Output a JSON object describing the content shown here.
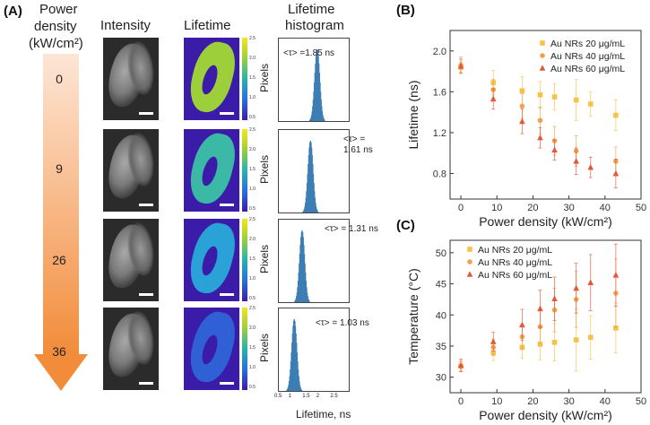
{
  "panel_a": {
    "letter": "(A)",
    "pd_header": [
      "Power",
      "density",
      "(kW/cm²)"
    ],
    "col_intensity": "Intensity",
    "col_lifetime": "Lifetime",
    "col_hist": [
      "Lifetime",
      "histogram"
    ],
    "power_levels": [
      "0",
      "9",
      "26",
      "36"
    ],
    "colorbar_ticks": [
      "2.5",
      "2.0",
      "1.5",
      "1.0",
      "0.5"
    ],
    "hist_ylabel": "Pixels",
    "hist_xlabel": "Lifetime, ns",
    "hist_xticks": [
      "0.5",
      "1",
      "1.5",
      "2",
      "2.5"
    ],
    "hist_annotations": [
      [
        "<τ> =1.85 ns"
      ],
      [
        "<τ> =",
        "1.61 ns"
      ],
      [
        "<τ> = 1.31 ns"
      ],
      [
        "<τ> = 1.03 ns"
      ]
    ]
  },
  "chart_data": [
    {
      "type": "scatter",
      "panel": "(B)",
      "title": "",
      "xlabel": "Power density (kW/cm²)",
      "ylabel": "Lifetime (ns)",
      "xlim": [
        -3,
        50
      ],
      "ylim": [
        0.55,
        2.2
      ],
      "xticks": [
        0,
        10,
        20,
        30,
        40,
        50
      ],
      "yticks": [
        0.8,
        1.2,
        1.6,
        2.0
      ],
      "xtick_labels": [
        "0",
        "10",
        "20",
        "30",
        "40",
        "50"
      ],
      "ytick_labels": [
        "0.8",
        "1.2",
        "1.6",
        "2.0"
      ],
      "legend_position": "top-right",
      "series": [
        {
          "name": "Au NRs 20 μg/mL",
          "marker": "square",
          "color": "#f6c24a",
          "x": [
            0,
            9,
            17,
            22,
            26,
            32,
            36,
            43
          ],
          "y": [
            1.84,
            1.69,
            1.61,
            1.57,
            1.55,
            1.52,
            1.48,
            1.37
          ],
          "err": [
            0.05,
            0.12,
            0.14,
            0.13,
            0.13,
            0.2,
            0.12,
            0.15
          ]
        },
        {
          "name": "Au NRs 40 μg/mL",
          "marker": "circle",
          "color": "#f2a14d",
          "x": [
            0,
            9,
            17,
            22,
            26,
            32,
            43
          ],
          "y": [
            1.86,
            1.62,
            1.46,
            1.32,
            1.12,
            1.02,
            0.92
          ],
          "err": [
            0.08,
            0.1,
            0.12,
            0.13,
            0.14,
            0.15,
            0.14
          ]
        },
        {
          "name": "Au NRs 60 μg/mL",
          "marker": "triangle",
          "color": "#e2583a",
          "x": [
            0,
            9,
            17,
            22,
            26,
            32,
            36,
            43
          ],
          "y": [
            1.85,
            1.53,
            1.31,
            1.15,
            1.03,
            0.92,
            0.86,
            0.8
          ],
          "err": [
            0.07,
            0.1,
            0.12,
            0.1,
            0.1,
            0.13,
            0.1,
            0.14
          ]
        }
      ]
    },
    {
      "type": "scatter",
      "panel": "(C)",
      "title": "",
      "xlabel": "Power density (kW/cm²)",
      "ylabel": "Temperature (°C)",
      "xlim": [
        -3,
        50
      ],
      "ylim": [
        27.5,
        52
      ],
      "xticks": [
        0,
        10,
        20,
        30,
        40,
        50
      ],
      "yticks": [
        30,
        35,
        40,
        45,
        50
      ],
      "xtick_labels": [
        "0",
        "10",
        "20",
        "30",
        "40",
        "50"
      ],
      "ytick_labels": [
        "30",
        "35",
        "40",
        "45",
        "50"
      ],
      "legend_position": "top-left",
      "series": [
        {
          "name": "Au NRs 20 μg/mL",
          "marker": "square",
          "color": "#f6c24a",
          "x": [
            0,
            9,
            17,
            22,
            26,
            32,
            36,
            43
          ],
          "y": [
            31.8,
            33.9,
            34.8,
            35.3,
            35.6,
            36.0,
            36.4,
            37.9
          ],
          "err": [
            0.8,
            1.2,
            1.8,
            2.5,
            3.0,
            5.0,
            3.5,
            4.0
          ]
        },
        {
          "name": "Au NRs 40 μg/mL",
          "marker": "circle",
          "color": "#f2a14d",
          "x": [
            0,
            9,
            17,
            22,
            26,
            32,
            43
          ],
          "y": [
            31.7,
            34.8,
            36.5,
            38.1,
            40.8,
            42.5,
            43.5
          ],
          "err": [
            0.8,
            1.3,
            2.0,
            2.8,
            3.5,
            4.5,
            5.5
          ]
        },
        {
          "name": "Au NRs 60 μg/mL",
          "marker": "triangle",
          "color": "#e2583a",
          "x": [
            0,
            9,
            17,
            22,
            26,
            32,
            36,
            43
          ],
          "y": [
            31.9,
            35.7,
            38.4,
            41.0,
            42.6,
            44.3,
            45.2,
            46.4
          ],
          "err": [
            1.0,
            1.5,
            2.5,
            3.0,
            3.5,
            4.0,
            4.5,
            5.0
          ]
        }
      ]
    }
  ]
}
